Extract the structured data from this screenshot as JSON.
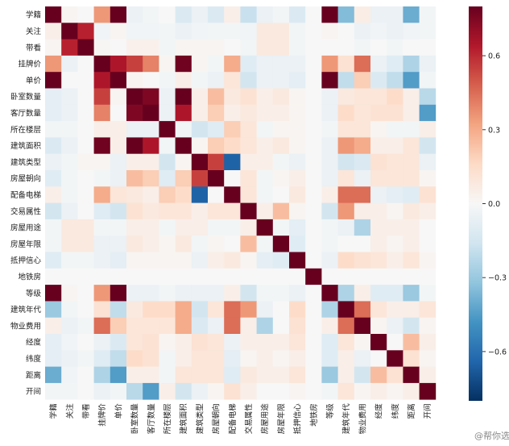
{
  "chart_data": {
    "type": "heatmap",
    "title": "",
    "xlabel": "",
    "ylabel": "",
    "labels": [
      "学籍",
      "关注",
      "带看",
      "挂牌价",
      "单价",
      "卧室数量",
      "客厅数量",
      "所在楼层",
      "建筑面积",
      "建筑类型",
      "房屋朝向",
      "配备电梯",
      "交易属性",
      "房屋用途",
      "房屋年限",
      "抵押信心",
      "地铁房",
      "等级",
      "建筑年代",
      "物业费用",
      "经度",
      "纬度",
      "距离",
      "开间"
    ],
    "matrix": [
      [
        1.0,
        0.02,
        0.0,
        0.35,
        0.85,
        -0.05,
        -0.02,
        0.0,
        -0.12,
        -0.05,
        -0.12,
        0.05,
        -0.18,
        -0.05,
        -0.02,
        -0.12,
        0.0,
        0.8,
        -0.35,
        0.06,
        -0.05,
        -0.05,
        -0.4,
        -0.02
      ],
      [
        0.05,
        1.0,
        0.62,
        -0.03,
        0.02,
        -0.03,
        -0.03,
        -0.02,
        -0.05,
        -0.03,
        -0.02,
        -0.02,
        -0.03,
        0.08,
        0.08,
        -0.02,
        0.0,
        0.02,
        0.0,
        -0.05,
        -0.03,
        -0.05,
        -0.03,
        -0.02
      ],
      [
        0.02,
        0.62,
        1.0,
        0.01,
        0.0,
        0.04,
        0.04,
        -0.02,
        0.02,
        0.02,
        0.02,
        0.0,
        -0.02,
        0.08,
        0.08,
        -0.02,
        0.0,
        0.0,
        0.0,
        -0.02,
        0.0,
        -0.02,
        0.0,
        0.0
      ],
      [
        0.35,
        -0.05,
        0.0,
        1.0,
        0.65,
        0.55,
        0.4,
        0.02,
        0.78,
        0.02,
        -0.02,
        0.3,
        -0.1,
        -0.05,
        -0.05,
        -0.05,
        0.0,
        0.35,
        0.12,
        0.45,
        -0.05,
        -0.1,
        -0.25,
        -0.05
      ],
      [
        0.85,
        0.0,
        0.0,
        0.65,
        1.0,
        0.02,
        0.0,
        -0.02,
        0.05,
        -0.02,
        -0.05,
        0.1,
        -0.15,
        -0.05,
        -0.05,
        -0.08,
        0.0,
        0.8,
        -0.2,
        0.2,
        -0.12,
        -0.2,
        -0.45,
        -0.02
      ],
      [
        -0.08,
        -0.05,
        0.0,
        0.55,
        0.02,
        1.0,
        0.75,
        -0.05,
        0.8,
        0.05,
        0.25,
        0.08,
        0.12,
        0.05,
        0.08,
        0.02,
        0.0,
        -0.05,
        0.08,
        0.1,
        0.1,
        0.15,
        0.05,
        -0.22
      ],
      [
        -0.08,
        -0.05,
        0.0,
        0.4,
        0.0,
        0.75,
        1.0,
        -0.05,
        0.65,
        0.05,
        0.2,
        0.05,
        0.08,
        0.05,
        0.05,
        0.02,
        0.0,
        -0.05,
        0.15,
        0.1,
        0.12,
        0.12,
        0.05,
        -0.45
      ],
      [
        -0.02,
        -0.02,
        0.0,
        0.05,
        0.05,
        -0.05,
        -0.05,
        1.0,
        -0.02,
        -0.15,
        -0.1,
        0.2,
        0.1,
        -0.02,
        0.02,
        0.02,
        0.0,
        -0.02,
        0.1,
        0.1,
        0.02,
        -0.02,
        -0.02,
        0.05
      ],
      [
        -0.12,
        -0.05,
        0.0,
        0.78,
        0.05,
        0.8,
        0.65,
        -0.02,
        1.0,
        0.02,
        0.2,
        0.15,
        0.1,
        0.05,
        0.08,
        0.02,
        0.0,
        -0.05,
        0.35,
        0.3,
        0.05,
        0.05,
        0.1,
        -0.15
      ],
      [
        -0.05,
        -0.02,
        0.02,
        0.02,
        -0.05,
        0.05,
        0.05,
        -0.15,
        0.02,
        1.0,
        0.55,
        -0.65,
        0.05,
        0.05,
        -0.02,
        -0.05,
        0.0,
        -0.05,
        -0.15,
        -0.12,
        0.12,
        0.1,
        0.1,
        -0.05
      ],
      [
        -0.1,
        -0.02,
        0.0,
        -0.02,
        -0.05,
        0.25,
        0.2,
        -0.1,
        0.2,
        0.55,
        1.0,
        0.0,
        0.1,
        -0.02,
        0.02,
        0.05,
        0.0,
        -0.05,
        0.1,
        -0.05,
        0.1,
        0.1,
        0.1,
        0.02
      ],
      [
        0.05,
        -0.02,
        0.0,
        0.3,
        0.1,
        0.08,
        0.05,
        0.2,
        0.15,
        -0.65,
        0.0,
        1.0,
        0.1,
        -0.02,
        0.0,
        0.08,
        0.0,
        0.05,
        0.45,
        0.45,
        -0.05,
        -0.08,
        -0.1,
        0.12
      ],
      [
        -0.15,
        -0.05,
        0.0,
        -0.1,
        -0.15,
        0.12,
        0.08,
        0.1,
        0.1,
        0.05,
        0.1,
        0.1,
        1.0,
        0.05,
        0.25,
        0.02,
        0.0,
        -0.15,
        0.35,
        0.05,
        0.05,
        0.02,
        0.08,
        0.05
      ],
      [
        -0.02,
        0.08,
        0.08,
        -0.02,
        -0.02,
        0.05,
        0.05,
        -0.02,
        0.05,
        0.05,
        -0.02,
        -0.02,
        0.05,
        1.0,
        -0.02,
        -0.08,
        0.0,
        -0.02,
        -0.05,
        -0.25,
        0.05,
        0.05,
        0.05,
        0.0
      ],
      [
        -0.02,
        0.08,
        0.08,
        -0.05,
        -0.05,
        0.08,
        0.05,
        0.02,
        0.08,
        -0.02,
        0.02,
        0.0,
        0.25,
        -0.02,
        1.0,
        -0.1,
        0.0,
        -0.02,
        0.0,
        0.0,
        0.05,
        0.02,
        0.05,
        0.0
      ],
      [
        -0.1,
        -0.02,
        -0.02,
        -0.05,
        -0.08,
        0.02,
        0.02,
        0.02,
        0.02,
        -0.05,
        0.05,
        0.08,
        0.02,
        -0.08,
        -0.1,
        1.0,
        0.0,
        -0.05,
        0.15,
        0.12,
        0.1,
        0.05,
        0.1,
        0.02
      ],
      [
        0.0,
        0.0,
        0.0,
        0.0,
        0.0,
        0.0,
        0.0,
        0.0,
        0.0,
        0.0,
        0.0,
        0.0,
        0.0,
        0.0,
        0.0,
        0.0,
        1.0,
        0.0,
        0.0,
        0.0,
        0.0,
        0.0,
        0.0,
        0.0
      ],
      [
        0.8,
        0.02,
        0.0,
        0.35,
        0.8,
        -0.05,
        -0.05,
        -0.02,
        -0.05,
        -0.05,
        -0.05,
        0.05,
        -0.15,
        -0.02,
        -0.02,
        -0.05,
        0.0,
        1.0,
        -0.25,
        0.05,
        -0.1,
        -0.1,
        -0.3,
        -0.02
      ],
      [
        -0.3,
        -0.02,
        0.0,
        0.12,
        -0.2,
        0.08,
        0.15,
        0.15,
        0.3,
        -0.15,
        0.1,
        0.45,
        0.35,
        -0.05,
        0.0,
        0.15,
        0.0,
        -0.25,
        1.0,
        0.45,
        0.1,
        0.05,
        0.05,
        0.1
      ],
      [
        0.05,
        -0.05,
        -0.02,
        0.45,
        0.2,
        0.1,
        0.1,
        0.1,
        0.3,
        -0.12,
        -0.05,
        0.45,
        0.05,
        -0.25,
        0.0,
        0.12,
        0.0,
        0.05,
        0.45,
        1.0,
        0.02,
        -0.05,
        -0.15,
        0.02
      ],
      [
        -0.08,
        -0.03,
        0.0,
        -0.05,
        -0.12,
        0.1,
        0.12,
        0.02,
        0.05,
        0.12,
        0.1,
        -0.05,
        0.05,
        0.05,
        0.05,
        0.1,
        0.0,
        -0.1,
        0.1,
        0.02,
        1.0,
        0.0,
        0.25,
        0.05
      ],
      [
        -0.08,
        -0.05,
        -0.02,
        -0.1,
        -0.2,
        0.15,
        0.12,
        -0.02,
        0.05,
        0.1,
        0.1,
        -0.08,
        0.02,
        0.05,
        0.02,
        0.05,
        0.0,
        -0.1,
        0.05,
        -0.05,
        0.0,
        1.0,
        0.12,
        0.02
      ],
      [
        -0.4,
        -0.03,
        0.0,
        -0.25,
        -0.45,
        0.05,
        0.05,
        -0.02,
        0.1,
        0.1,
        0.1,
        -0.1,
        0.08,
        0.05,
        0.05,
        0.1,
        0.0,
        -0.3,
        0.05,
        -0.15,
        0.25,
        0.12,
        1.0,
        0.05
      ],
      [
        -0.02,
        -0.02,
        0.0,
        -0.05,
        -0.02,
        -0.22,
        -0.45,
        0.05,
        -0.15,
        -0.05,
        0.02,
        0.12,
        0.05,
        0.0,
        0.0,
        0.02,
        0.0,
        -0.02,
        0.1,
        0.02,
        0.05,
        0.02,
        0.05,
        1.0
      ]
    ],
    "vmin": -0.8,
    "vmax": 0.8,
    "colormap": "RdBu_r",
    "colorbar_ticks": [
      "0.6",
      "0.3",
      "0.0",
      "−0.3",
      "−0.6"
    ],
    "colorbar_tick_values": [
      0.6,
      0.3,
      0.0,
      -0.3,
      -0.6
    ]
  },
  "watermark": "@帮你选房"
}
